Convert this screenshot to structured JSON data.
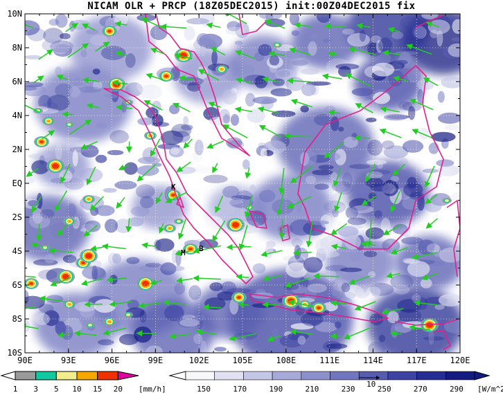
{
  "title": "NICAM OLR + PRCP (18Z05DEC2015) init:00Z04DEC2015 fix",
  "lat_labels": [
    "10N",
    "8N",
    "6N",
    "4N",
    "2N",
    "EQ",
    "2S",
    "4S",
    "6S",
    "8S",
    "10S"
  ],
  "lon_labels": [
    "90E",
    "93E",
    "96E",
    "99E",
    "102E",
    "105E",
    "108E",
    "111E",
    "114E",
    "117E",
    "120E"
  ],
  "markers": [
    {
      "id": "K",
      "label": "K"
    },
    {
      "id": "M",
      "label": "M"
    },
    {
      "id": "B",
      "label": "B"
    }
  ],
  "precip_bar": {
    "labels": [
      "1",
      "3",
      "5",
      "10",
      "15",
      "20"
    ],
    "unit": "[mm/h]",
    "colors": [
      "#9a9a9a",
      "#12c8a0",
      "#f2ec8c",
      "#f6a800",
      "#f03000",
      "#e000a0"
    ]
  },
  "olr_bar": {
    "labels": [
      "150",
      "170",
      "190",
      "210",
      "230",
      "250",
      "270",
      "290"
    ],
    "unit": "[W/m^2]",
    "colors": [
      "#f6f6fb",
      "#dfe0f1",
      "#c4c6e6",
      "#a7aad9",
      "#8c90cc",
      "#7176bf",
      "#565cb0",
      "#3c43a2",
      "#262d92",
      "#131a80"
    ]
  },
  "vector_ref": {
    "label": "10"
  },
  "colors": {
    "coast": "#e0208c",
    "wind": "#22cc22",
    "ocean_dark": "#2a2f94"
  }
}
